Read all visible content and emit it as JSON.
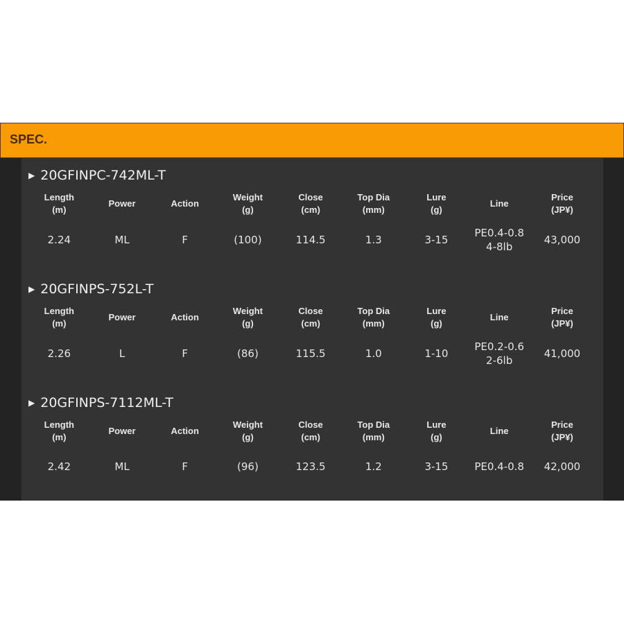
{
  "header": {
    "title": "SPEC."
  },
  "columns": [
    "Length\n(m)",
    "Power",
    "Action",
    "Weight\n(g)",
    "Close\n(cm)",
    "Top Dia\n(mm)",
    "Lure\n(g)",
    "Line",
    "Price\n(JP¥)"
  ],
  "models": [
    {
      "name": "20GFINPC-742ML-T",
      "values": [
        "2.24",
        "ML",
        "F",
        "(100)",
        "114.5",
        "1.3",
        "3-15",
        "PE0.4-0.8\n4-8lb",
        "43,000"
      ]
    },
    {
      "name": "20GFINPS-752L-T",
      "values": [
        "2.26",
        "L",
        "F",
        "(86)",
        "115.5",
        "1.0",
        "1-10",
        "PE0.2-0.6\n2-6lb",
        "41,000"
      ]
    },
    {
      "name": "20GFINPS-7112ML-T",
      "values": [
        "2.42",
        "ML",
        "F",
        "(96)",
        "123.5",
        "1.2",
        "3-15",
        "PE0.4-0.8",
        "42,000"
      ]
    }
  ],
  "colors": {
    "accent": "#f99b05",
    "panel": "#333333",
    "outer": "#232323"
  }
}
